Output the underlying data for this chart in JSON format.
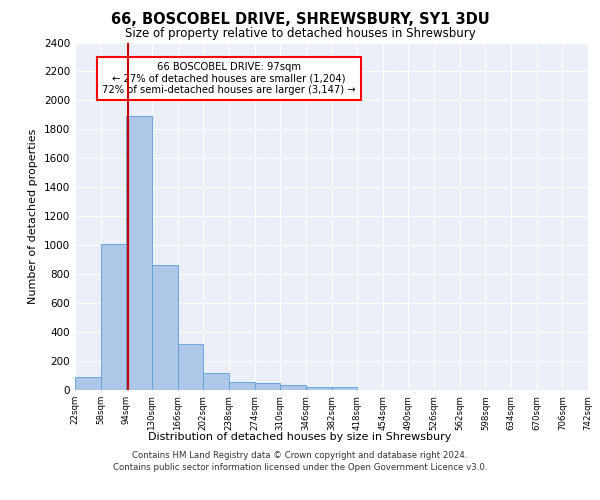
{
  "title": "66, BOSCOBEL DRIVE, SHREWSBURY, SY1 3DU",
  "subtitle": "Size of property relative to detached houses in Shrewsbury",
  "xlabel": "Distribution of detached houses by size in Shrewsbury",
  "ylabel": "Number of detached properties",
  "bin_labels": [
    "22sqm",
    "58sqm",
    "94sqm",
    "130sqm",
    "166sqm",
    "202sqm",
    "238sqm",
    "274sqm",
    "310sqm",
    "346sqm",
    "382sqm",
    "418sqm",
    "454sqm",
    "490sqm",
    "526sqm",
    "562sqm",
    "598sqm",
    "634sqm",
    "670sqm",
    "706sqm",
    "742sqm"
  ],
  "bar_heights": [
    90,
    1010,
    1890,
    860,
    320,
    115,
    55,
    50,
    35,
    20,
    20,
    0,
    0,
    0,
    0,
    0,
    0,
    0,
    0,
    0
  ],
  "bar_color": "#aec6e8",
  "bar_edge_color": "#5a9fd4",
  "property_value_bin": 2,
  "red_line_label": "66 BOSCOBEL DRIVE: 97sqm",
  "annotation_line1": "← 27% of detached houses are smaller (1,204)",
  "annotation_line2": "72% of semi-detached houses are larger (3,147) →",
  "annotation_box_color": "white",
  "annotation_box_edge": "red",
  "red_line_color": "#cc0000",
  "ylim": [
    0,
    2400
  ],
  "yticks": [
    0,
    200,
    400,
    600,
    800,
    1000,
    1200,
    1400,
    1600,
    1800,
    2000,
    2200,
    2400
  ],
  "background_color": "#eaeff8",
  "grid_color": "white",
  "footer_line1": "Contains HM Land Registry data © Crown copyright and database right 2024.",
  "footer_line2": "Contains public sector information licensed under the Open Government Licence v3.0."
}
